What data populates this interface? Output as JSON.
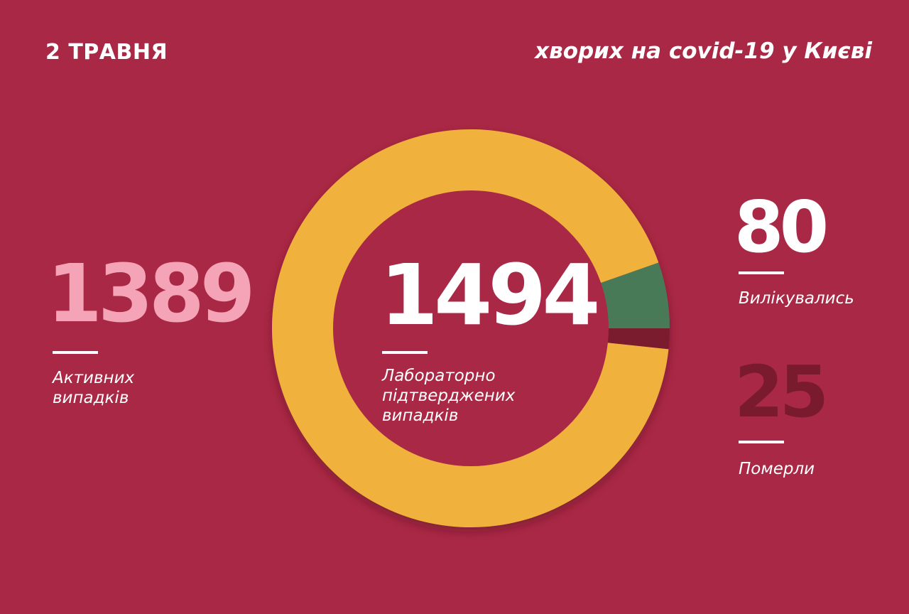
{
  "header": {
    "date": "2 ТРАВНЯ",
    "title": "хворих на covid-19 у Києві"
  },
  "colors": {
    "background": "#A92845",
    "active": "#F0B23E",
    "recovered": "#4A7A58",
    "deaths": "#7A1A2E",
    "active_number": "#F5A3B7"
  },
  "stats": {
    "active": {
      "value": "1389",
      "label_1": "Активних",
      "label_2": "випадків"
    },
    "total": {
      "value": "1494",
      "label_1": "Лабораторно",
      "label_2": "підтверджених",
      "label_3": "випадків"
    },
    "recovered": {
      "value": "80",
      "label": "Вилікувались"
    },
    "deaths": {
      "value": "25",
      "label": "Померли"
    }
  },
  "chart_data": {
    "type": "pie",
    "donut": true,
    "total": 1494,
    "slices": [
      {
        "label": "Вилікувались",
        "value": 80,
        "color": "#4A7A58"
      },
      {
        "label": "Померли",
        "value": 25,
        "color": "#7A1A2E"
      },
      {
        "label": "Активних випадків",
        "value": 1389,
        "color": "#F0B23E"
      }
    ]
  }
}
